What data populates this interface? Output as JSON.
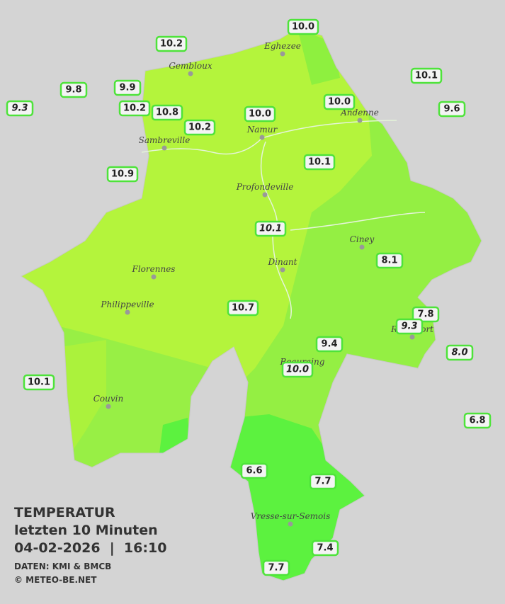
{
  "legend": {
    "title": "TEMPERATUR",
    "period": "letzten 10 Minuten",
    "date": "04-02-2026  |  16:10",
    "source": "DATEN: KMI & BMCB",
    "copyright": "© METEO-BE.NET"
  },
  "cities": [
    "Eghezee",
    "Gembloux",
    "Andenne",
    "Namur",
    "Sambreville",
    "Profondeville",
    "Ciney",
    "Dinant",
    "Florennes",
    "Philippeville",
    "Rochefort",
    "Beauraing",
    "Couvin",
    "Vresse-sur-Semois"
  ],
  "stations": [
    {
      "label": "10.0"
    },
    {
      "label": "10.2"
    },
    {
      "label": "10.1"
    },
    {
      "label": "9.8"
    },
    {
      "label": "9.9"
    },
    {
      "label": "9.3",
      "italic": true
    },
    {
      "label": "10.2"
    },
    {
      "label": "10.8"
    },
    {
      "label": "10.2"
    },
    {
      "label": "10.0"
    },
    {
      "label": "10.0"
    },
    {
      "label": "9.6"
    },
    {
      "label": "10.1"
    },
    {
      "label": "10.9"
    },
    {
      "label": "10.1",
      "italic": true
    },
    {
      "label": "8.1"
    },
    {
      "label": "7.8"
    },
    {
      "label": "9.3",
      "italic": true
    },
    {
      "label": "10.7"
    },
    {
      "label": "9.4"
    },
    {
      "label": "8.0",
      "italic": true
    },
    {
      "label": "10.0",
      "italic": true
    },
    {
      "label": "10.1"
    },
    {
      "label": "6.8"
    },
    {
      "label": "6.6"
    },
    {
      "label": "7.7"
    },
    {
      "label": "7.4"
    },
    {
      "label": "7.7"
    }
  ]
}
